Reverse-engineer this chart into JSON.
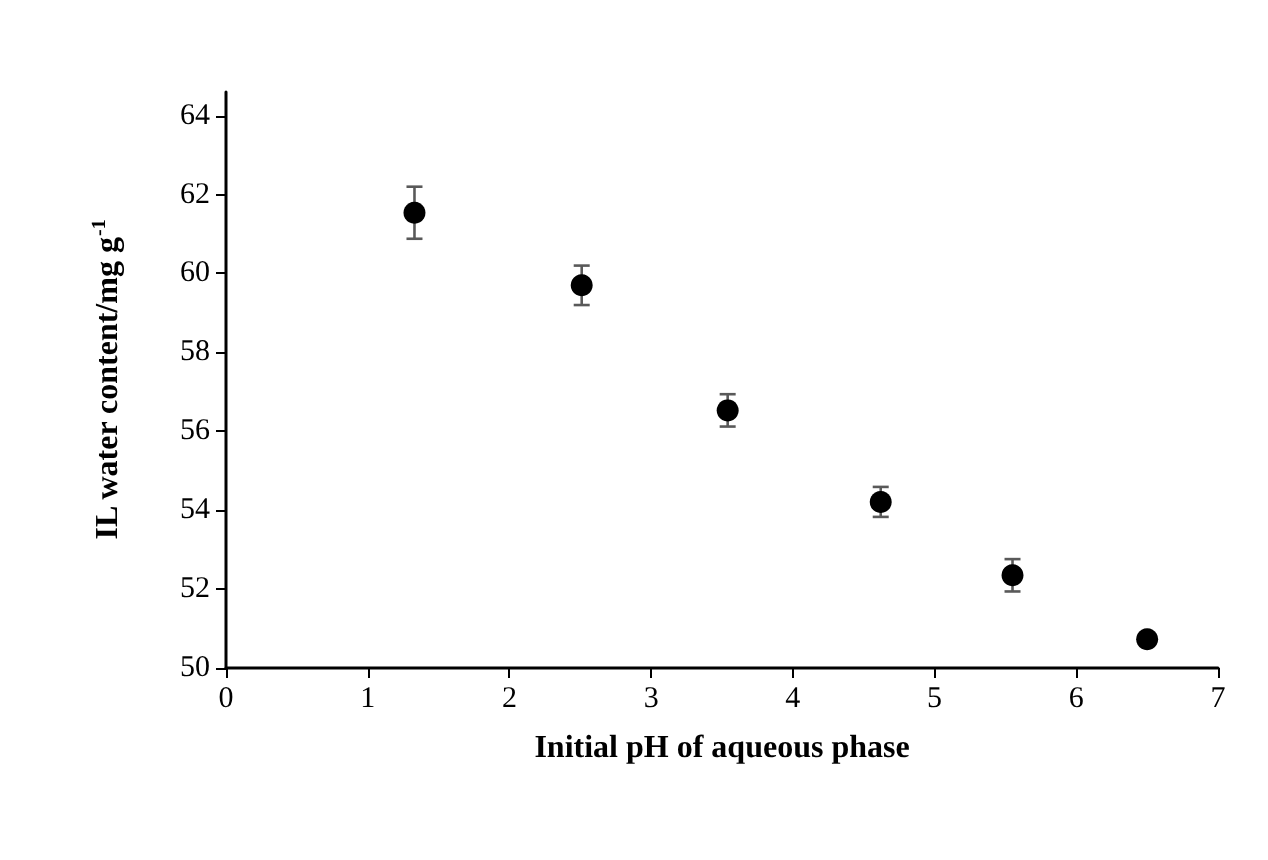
{
  "chart_data": {
    "type": "scatter",
    "xlabel": "Initial pH of aqueous phase",
    "ylabel": "IL water content/mg g$^{-1}$",
    "x": [
      1.33,
      2.51,
      3.54,
      4.62,
      5.55,
      6.5
    ],
    "series": [
      {
        "color": "#000000",
        "values": [
          61.54,
          59.7,
          56.53,
          54.21,
          52.35,
          50.73
        ],
        "errors": [
          0.66,
          0.5,
          0.41,
          0.38,
          0.41,
          0.12
        ]
      }
    ],
    "xlim": [
      0,
      7
    ],
    "xticks": [
      0,
      1,
      2,
      3,
      4,
      5,
      6,
      7
    ],
    "ylim": [
      50,
      64.6
    ],
    "yticks": [
      50,
      52,
      54,
      56,
      58,
      60,
      62,
      64
    ],
    "marker": "circle",
    "grid": false
  }
}
